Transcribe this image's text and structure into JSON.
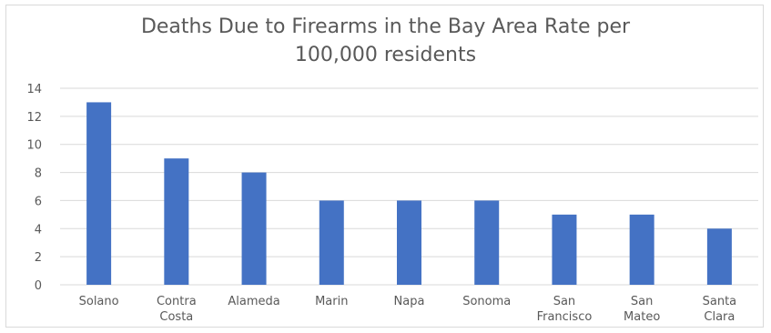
{
  "chart_data": {
    "type": "bar",
    "title_lines": [
      "Deaths Due to Firearms in the Bay Area Rate per",
      "100,000 residents"
    ],
    "categories": [
      "Solano",
      "Contra Costa",
      "Alameda",
      "Marin",
      "Napa",
      "Sonoma",
      "San Francisco",
      "San Mateo",
      "Santa Clara"
    ],
    "category_label_lines": [
      [
        "Solano"
      ],
      [
        "Contra",
        "Costa"
      ],
      [
        "Alameda"
      ],
      [
        "Marin"
      ],
      [
        "Napa"
      ],
      [
        "Sonoma"
      ],
      [
        "San",
        "Francisco"
      ],
      [
        "San",
        "Mateo"
      ],
      [
        "Santa",
        "Clara"
      ]
    ],
    "values": [
      13,
      9,
      8,
      6,
      6,
      6,
      5,
      5,
      4
    ],
    "ylim": [
      0,
      14
    ],
    "yticks": [
      "0",
      "2",
      "4",
      "6",
      "8",
      "10",
      "12",
      "14"
    ],
    "grid": true,
    "legend": "none",
    "bar_color": "#4472c4",
    "grid_color": "#d9d9d9",
    "text_color": "#595959"
  }
}
